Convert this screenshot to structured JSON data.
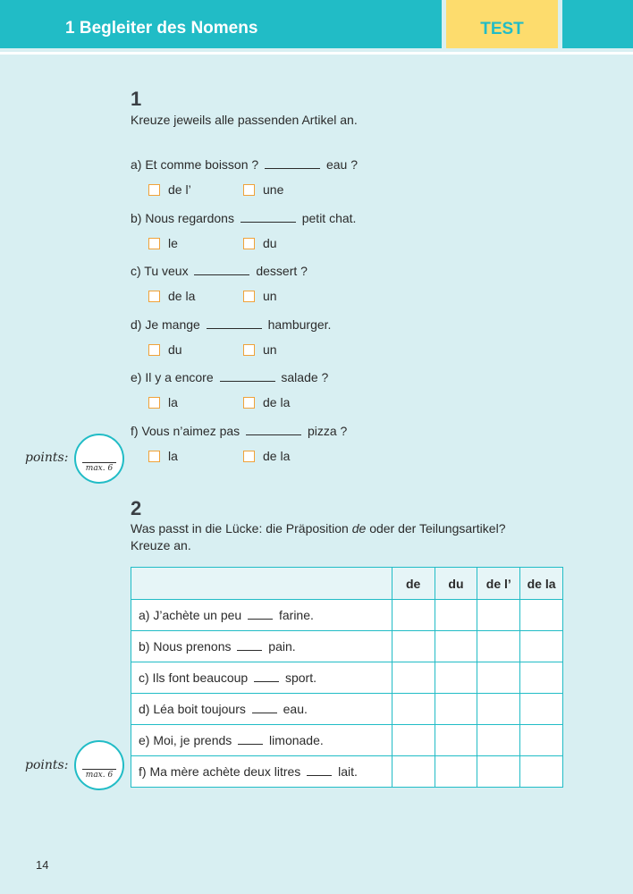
{
  "header": {
    "chapter": "1  Begleiter des Nomens",
    "tag": "TEST"
  },
  "ex1": {
    "number": "1",
    "instruction": "Kreuze jeweils alle passenden Artikel an.",
    "items": [
      {
        "pre": "a)  Et comme boisson ? ",
        "post": " eau ?",
        "opts": [
          "de l’",
          "une"
        ]
      },
      {
        "pre": "b)  Nous regardons ",
        "post": " petit chat.",
        "opts": [
          "le",
          "du"
        ]
      },
      {
        "pre": "c)  Tu veux ",
        "post": " dessert ?",
        "opts": [
          "de la",
          "un"
        ]
      },
      {
        "pre": "d)  Je mange ",
        "post": " hamburger.",
        "opts": [
          "du",
          "un"
        ]
      },
      {
        "pre": "e)  Il y a encore ",
        "post": " salade ?",
        "opts": [
          "la",
          "de la"
        ]
      },
      {
        "pre": "f)  Vous n’aimez pas ",
        "post": " pizza ?",
        "opts": [
          "la",
          "de la"
        ]
      }
    ],
    "points_label": "points:",
    "max_label": "max. 6"
  },
  "ex2": {
    "number": "2",
    "instruction_a": "Was passt in die Lücke: die Präposition ",
    "instruction_em": "de",
    "instruction_b": " oder der Teilungsartikel?",
    "instruction_line2": "Kreuze an.",
    "columns": [
      "de",
      "du",
      "de l’",
      "de la"
    ],
    "rows": [
      {
        "pre": "a) J’achète un peu ",
        "post": " farine."
      },
      {
        "pre": "b) Nous prenons ",
        "post": " pain."
      },
      {
        "pre": "c) Ils font beaucoup ",
        "post": " sport."
      },
      {
        "pre": "d) Léa boit toujours ",
        "post": " eau."
      },
      {
        "pre": "e) Moi, je prends ",
        "post": " limonade."
      },
      {
        "pre": "f) Ma mère achète deux litres ",
        "post": " lait."
      }
    ],
    "points_label": "points:",
    "max_label": "max. 6"
  },
  "page_number": "14",
  "colors": {
    "teal": "#21bcc6",
    "yellow": "#fddc6d",
    "background": "#d8eff2",
    "checkbox": "#f0a23a"
  }
}
